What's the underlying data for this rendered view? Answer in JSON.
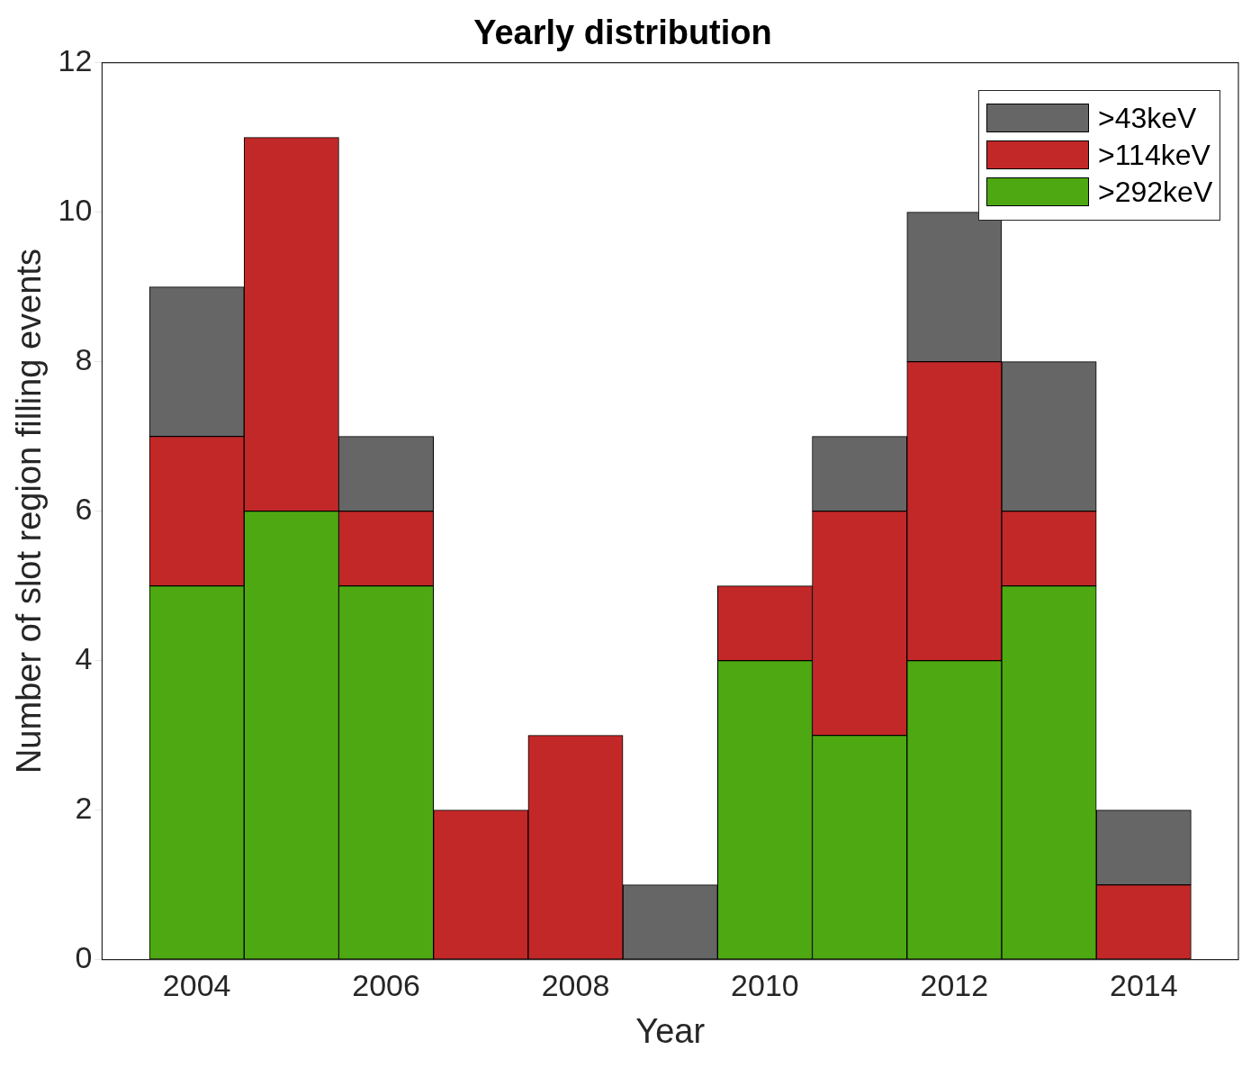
{
  "chart_data": {
    "type": "bar",
    "title": "Yearly distribution",
    "xlabel": "Year",
    "ylabel": "Number of slot region filling events",
    "stacked": true,
    "legend": "top right",
    "grid": false,
    "x": [
      2004,
      2005,
      2006,
      2007,
      2008,
      2009,
      2010,
      2011,
      2012,
      2013,
      2014
    ],
    "xlim": [
      2003,
      2015
    ],
    "xticks": [
      2004,
      2006,
      2008,
      2010,
      2012,
      2014
    ],
    "ylim": [
      0,
      12
    ],
    "yticks": [
      0,
      2,
      4,
      6,
      8,
      10,
      12
    ],
    "series": [
      {
        "name": ">292keV",
        "color": "#4ea812",
        "values": [
          5,
          6,
          5,
          0,
          0,
          0,
          4,
          3,
          4,
          5,
          0
        ]
      },
      {
        "name": ">114keV",
        "color": "#c32828",
        "values": [
          2,
          5,
          1,
          2,
          3,
          0,
          1,
          3,
          4,
          1,
          1
        ]
      },
      {
        "name": ">43keV",
        "color": "#666666",
        "values": [
          2,
          0,
          1,
          0,
          0,
          1,
          0,
          1,
          2,
          2,
          1
        ]
      }
    ]
  }
}
